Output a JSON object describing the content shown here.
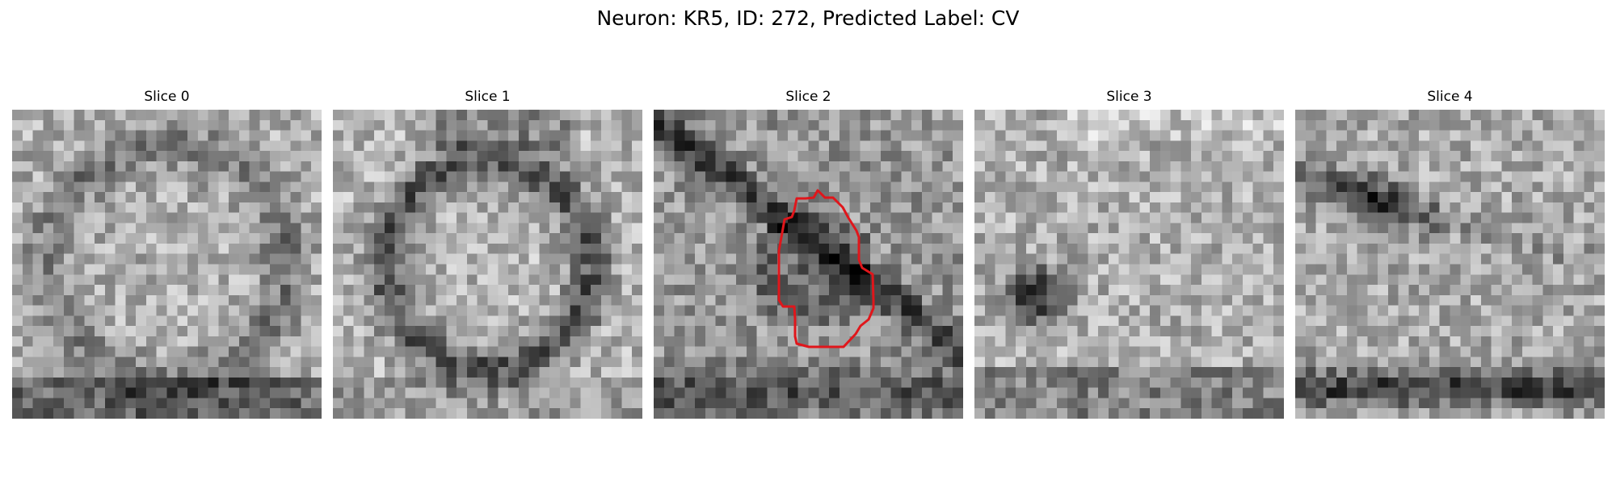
{
  "figure": {
    "title": "Neuron: KR5, ID: 272, Predicted Label: CV"
  },
  "panels": [
    {
      "title": "Slice 0",
      "seed": 11,
      "pattern": "ring-soft",
      "has_contour": false
    },
    {
      "title": "Slice 1",
      "seed": 23,
      "pattern": "ring-strong",
      "has_contour": false
    },
    {
      "title": "Slice 2",
      "seed": 37,
      "pattern": "diagonal-bands",
      "has_contour": true
    },
    {
      "title": "Slice 3",
      "seed": 41,
      "pattern": "dark-spot",
      "has_contour": false
    },
    {
      "title": "Slice 4",
      "seed": 53,
      "pattern": "bottom-band",
      "has_contour": false
    }
  ],
  "contour": {
    "color": "#e0161b"
  }
}
